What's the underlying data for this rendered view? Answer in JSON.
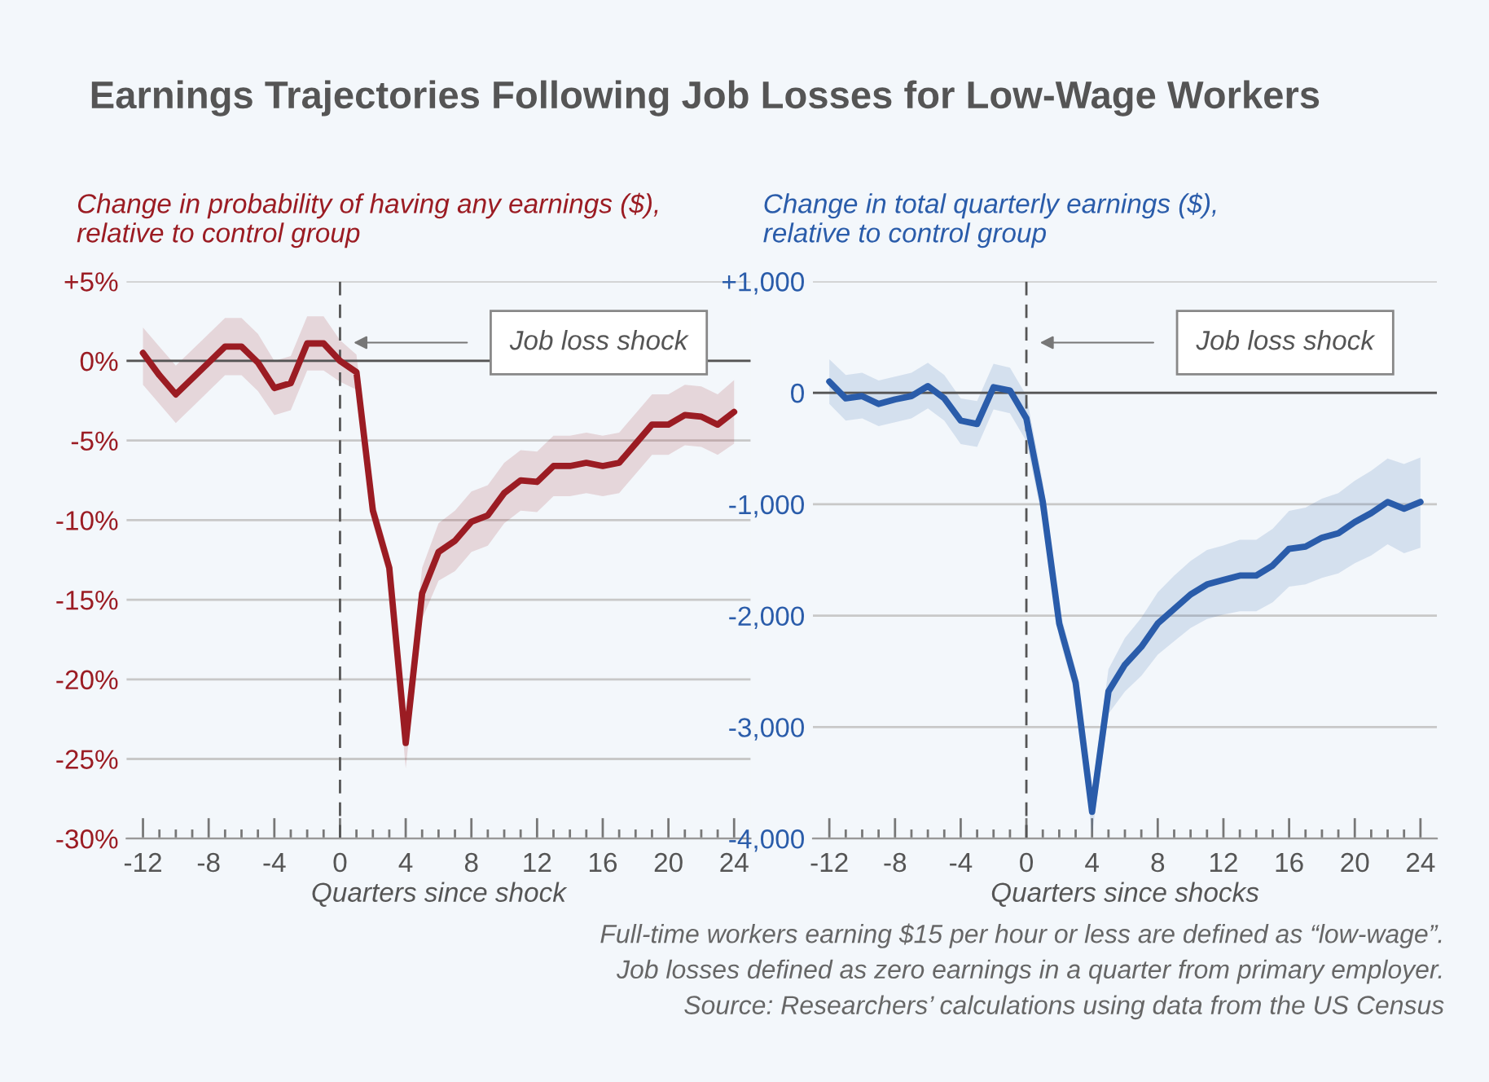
{
  "chart_data": [
    {
      "type": "line",
      "title": "Earnings Trajectories Following Job Losses for Low-Wage Workers",
      "ylabel": "Change in probability of having any earnings ($),\nrelative to control group",
      "xlabel": "Quarters since shock",
      "x": [
        -12,
        -11,
        -10,
        -9,
        -8,
        -7,
        -6,
        -5,
        -4,
        -3,
        -2,
        -1,
        0,
        1,
        2,
        3,
        4,
        5,
        6,
        7,
        8,
        9,
        10,
        11,
        12,
        13,
        14,
        15,
        16,
        17,
        18,
        19,
        20,
        21,
        22,
        23,
        24
      ],
      "series": [
        {
          "color": "#9b1c23",
          "values": [
            0.5,
            -0.9,
            -2.1,
            -1.1,
            -0.1,
            0.9,
            0.9,
            -0.1,
            -1.7,
            -1.4,
            1.1,
            1.1,
            0,
            -0.7,
            -9.4,
            -13.0,
            -24.0,
            -14.6,
            -12.0,
            -11.3,
            -10.1,
            -9.7,
            -8.3,
            -7.5,
            -7.6,
            -6.6,
            -6.6,
            -6.4,
            -6.6,
            -6.4,
            -5.2,
            -4.0,
            -4.0,
            -3.4,
            -3.5,
            -4.0,
            -3.2
          ],
          "lower": [
            -1.5,
            -2.7,
            -3.9,
            -2.9,
            -1.9,
            -0.9,
            -0.9,
            -1.9,
            -3.4,
            -3.1,
            -0.6,
            -0.6,
            -1.3,
            -1.8,
            -10.2,
            -13.8,
            -25.6,
            -16.2,
            -13.8,
            -13.2,
            -12.0,
            -11.6,
            -10.2,
            -9.4,
            -9.5,
            -8.5,
            -8.5,
            -8.3,
            -8.5,
            -8.3,
            -7.1,
            -5.9,
            -5.9,
            -5.3,
            -5.4,
            -5.9,
            -5.2
          ],
          "upper": [
            2.1,
            0.9,
            -0.3,
            0.7,
            1.7,
            2.7,
            2.7,
            1.7,
            0.0,
            0.3,
            2.8,
            2.8,
            1.3,
            0.4,
            -8.6,
            -12.2,
            -22.8,
            -13.0,
            -10.2,
            -9.4,
            -8.2,
            -7.8,
            -6.4,
            -5.6,
            -5.7,
            -4.7,
            -4.7,
            -4.5,
            -4.7,
            -4.5,
            -3.3,
            -2.1,
            -2.1,
            -1.5,
            -1.6,
            -2.1,
            -1.2
          ]
        }
      ],
      "ylim": [
        -30,
        5
      ],
      "yticks": [
        {
          "value": 5,
          "label": "+5%"
        },
        {
          "value": 0,
          "label": "0%"
        },
        {
          "value": -5,
          "label": "-5%"
        },
        {
          "value": -10,
          "label": "-10%"
        },
        {
          "value": -15,
          "label": "-15%"
        },
        {
          "value": -20,
          "label": "-20%"
        },
        {
          "value": -25,
          "label": "-25%"
        },
        {
          "value": -30,
          "label": "-30%"
        }
      ],
      "xlim": [
        -13,
        25
      ],
      "xticks": [
        -12,
        {
          "value": -11,
          "label": null
        },
        {
          "value": -10,
          "label": null
        },
        {
          "value": -9,
          "label": null
        },
        -8,
        {
          "value": -7,
          "label": null
        },
        {
          "value": -6,
          "label": null
        },
        {
          "value": -5,
          "label": null
        },
        -4,
        {
          "value": -3,
          "label": null
        },
        {
          "value": -2,
          "label": null
        },
        {
          "value": -1,
          "label": null
        },
        0,
        {
          "value": 1,
          "label": null
        },
        {
          "value": 2,
          "label": null
        },
        {
          "value": 3,
          "label": null
        },
        4,
        {
          "value": 5,
          "label": null
        },
        {
          "value": 6,
          "label": null
        },
        {
          "value": 7,
          "label": null
        },
        8,
        {
          "value": 9,
          "label": null
        },
        {
          "value": 10,
          "label": null
        },
        {
          "value": 11,
          "label": null
        },
        12,
        {
          "value": 13,
          "label": null
        },
        {
          "value": 14,
          "label": null
        },
        {
          "value": 15,
          "label": null
        },
        16,
        {
          "value": 17,
          "label": null
        },
        {
          "value": 18,
          "label": null
        },
        {
          "value": 19,
          "label": null
        },
        20,
        {
          "value": 21,
          "label": null
        },
        {
          "value": 22,
          "label": null
        },
        {
          "value": 23,
          "label": null
        },
        24
      ],
      "ref_lines": [
        {
          "axis": "x",
          "value": 0,
          "line_style": "dashed",
          "color": "#555555"
        },
        {
          "axis": "y",
          "value": 0,
          "line_style": "solid",
          "color": "#555555"
        }
      ],
      "annotations": [
        "Job loss shock"
      ],
      "grid": "y",
      "line_style": "solid",
      "marker": "none"
    },
    {
      "type": "line",
      "ylabel": "Change in total quarterly earnings ($),\nrelative to control group",
      "xlabel": "Quarters since shocks",
      "x": [
        -12,
        -11,
        -10,
        -9,
        -8,
        -7,
        -6,
        -5,
        -4,
        -3,
        -2,
        -1,
        0,
        1,
        2,
        3,
        4,
        5,
        6,
        7,
        8,
        9,
        10,
        11,
        12,
        13,
        14,
        15,
        16,
        17,
        18,
        19,
        20,
        21,
        22,
        23,
        24
      ],
      "series": [
        {
          "color": "#2a5caa",
          "values": [
            100,
            -50,
            -30,
            -100,
            -60,
            -30,
            60,
            -50,
            -250,
            -280,
            50,
            20,
            -230,
            -980,
            -2070,
            -2600,
            -3760,
            -2680,
            -2440,
            -2280,
            -2070,
            -1940,
            -1810,
            -1720,
            -1680,
            -1640,
            -1640,
            -1550,
            -1400,
            -1380,
            -1300,
            -1260,
            -1160,
            -1080,
            -980,
            -1040,
            -980
          ],
          "lower": [
            -100,
            -250,
            -230,
            -300,
            -265,
            -230,
            -140,
            -250,
            -460,
            -485,
            -150,
            -185,
            -435,
            -1150,
            -2200,
            -2720,
            -3960,
            -2880,
            -2680,
            -2540,
            -2350,
            -2230,
            -2110,
            -2030,
            -1990,
            -1960,
            -1960,
            -1880,
            -1740,
            -1720,
            -1660,
            -1620,
            -1530,
            -1460,
            -1360,
            -1440,
            -1390
          ],
          "upper": [
            300,
            160,
            180,
            110,
            145,
            180,
            270,
            160,
            -50,
            -75,
            260,
            225,
            -25,
            -800,
            -1940,
            -2480,
            -3560,
            -2480,
            -2200,
            -2020,
            -1790,
            -1640,
            -1510,
            -1410,
            -1370,
            -1320,
            -1320,
            -1220,
            -1060,
            -1030,
            -950,
            -900,
            -790,
            -700,
            -590,
            -640,
            -580
          ]
        }
      ],
      "ylim": [
        -4000,
        1000
      ],
      "yticks": [
        {
          "value": 1000,
          "label": "+1,000"
        },
        0,
        {
          "value": -1000,
          "label": "-1,000"
        },
        {
          "value": -2000,
          "label": "-2,000"
        },
        {
          "value": -3000,
          "label": "-3,000"
        },
        {
          "value": -4000,
          "label": "-4,000"
        }
      ],
      "xlim": [
        -13,
        25
      ],
      "xticks": [
        -12,
        {
          "value": -11,
          "label": null
        },
        {
          "value": -10,
          "label": null
        },
        {
          "value": -9,
          "label": null
        },
        -8,
        {
          "value": -7,
          "label": null
        },
        {
          "value": -6,
          "label": null
        },
        {
          "value": -5,
          "label": null
        },
        -4,
        {
          "value": -3,
          "label": null
        },
        {
          "value": -2,
          "label": null
        },
        {
          "value": -1,
          "label": null
        },
        0,
        {
          "value": 1,
          "label": null
        },
        {
          "value": 2,
          "label": null
        },
        {
          "value": 3,
          "label": null
        },
        4,
        {
          "value": 5,
          "label": null
        },
        {
          "value": 6,
          "label": null
        },
        {
          "value": 7,
          "label": null
        },
        8,
        {
          "value": 9,
          "label": null
        },
        {
          "value": 10,
          "label": null
        },
        {
          "value": 11,
          "label": null
        },
        12,
        {
          "value": 13,
          "label": null
        },
        {
          "value": 14,
          "label": null
        },
        {
          "value": 15,
          "label": null
        },
        16,
        {
          "value": 17,
          "label": null
        },
        {
          "value": 18,
          "label": null
        },
        {
          "value": 19,
          "label": null
        },
        20,
        {
          "value": 21,
          "label": null
        },
        {
          "value": 22,
          "label": null
        },
        {
          "value": 23,
          "label": null
        },
        24
      ],
      "ref_lines": [
        {
          "axis": "x",
          "value": 0,
          "line_style": "dashed",
          "color": "#555555"
        },
        {
          "axis": "y",
          "value": 0,
          "line_style": "solid",
          "color": "#555555"
        }
      ],
      "annotations": [
        "Job loss shock",
        "Full-time workers earning $15 per hour or less are defined as “low-wage”.",
        "Job losses defined as zero earnings in a quarter from primary employer.",
        "Source: Researchers’ calculations using data from the US Census"
      ],
      "grid": "y",
      "line_style": "solid",
      "marker": "none"
    }
  ]
}
